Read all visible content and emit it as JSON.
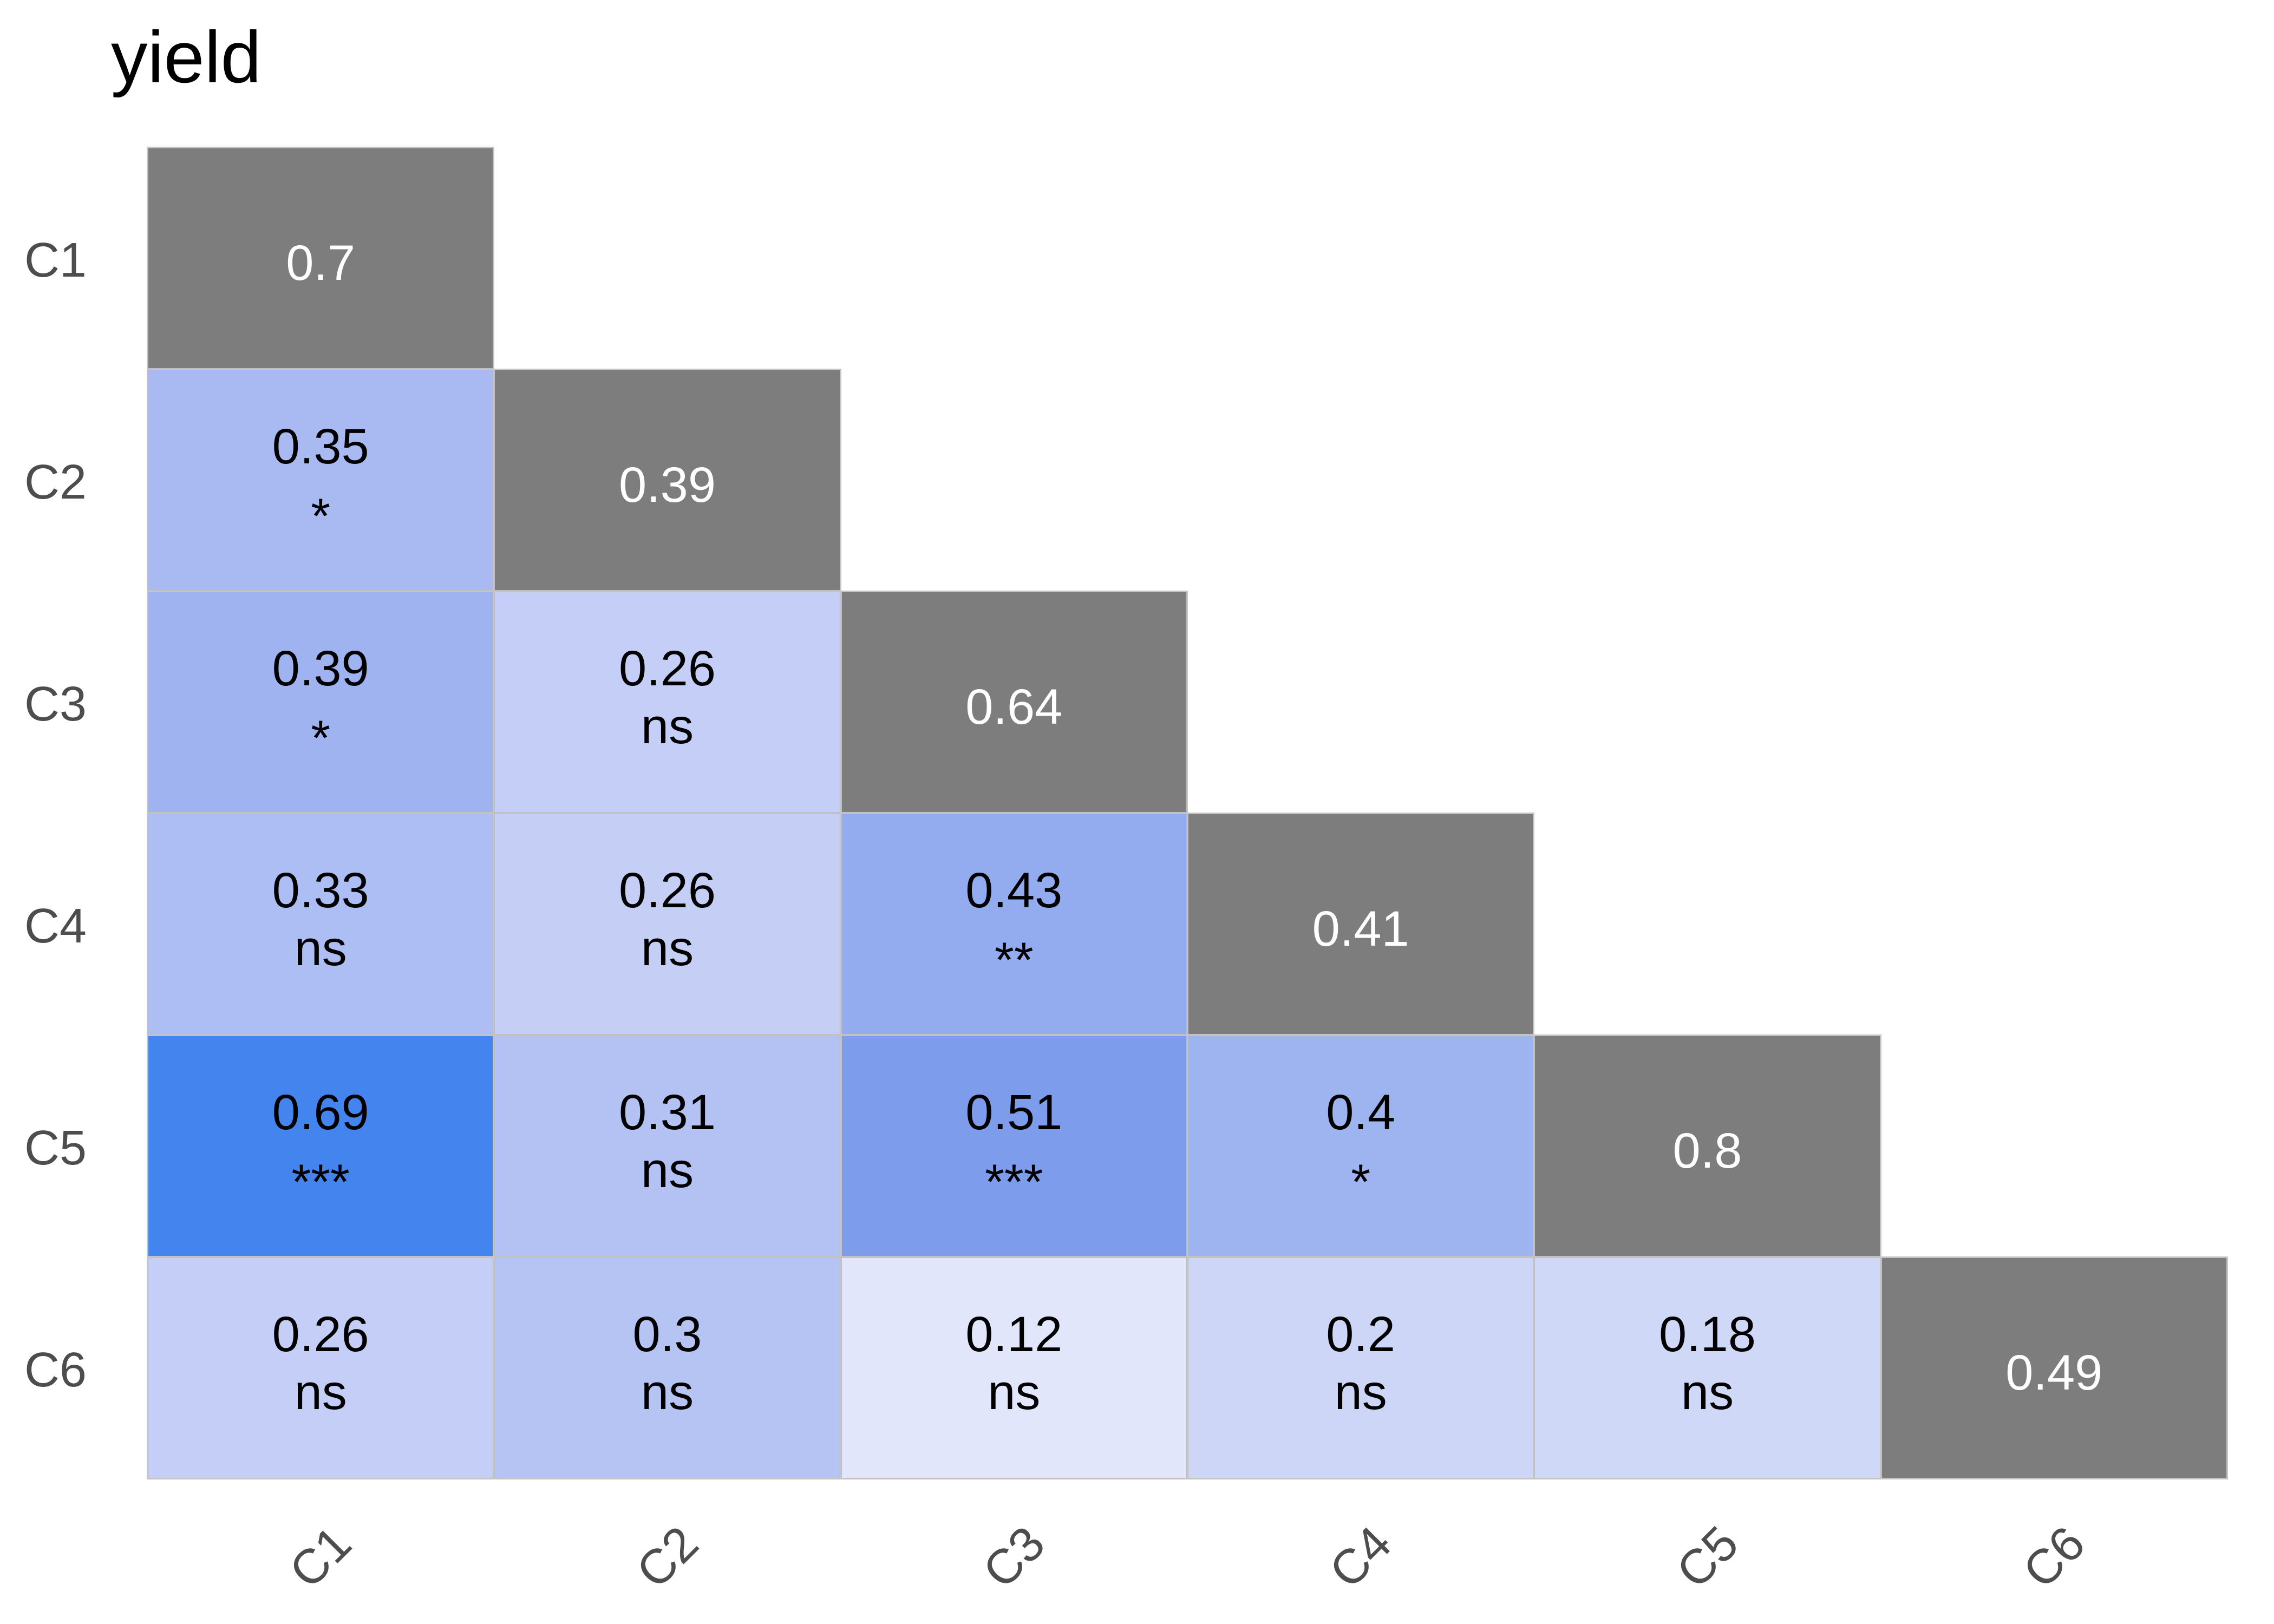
{
  "title": "yield",
  "style": {
    "background": "#ffffff",
    "title_color": "#000000",
    "axis_label_color": "#4d4d4d",
    "cell_border_color": "#c2c2c2",
    "diagonal_fill": "#7d7d7d",
    "diagonal_text_color": "#ffffff",
    "cell_text_color": "#000000"
  },
  "chart_data": {
    "type": "heatmap",
    "title": "yield",
    "legend": "none",
    "grid": "off",
    "rows": [
      "C1",
      "C2",
      "C3",
      "C4",
      "C5",
      "C6"
    ],
    "cols": [
      "C1",
      "C2",
      "C3",
      "C4",
      "C5",
      "C6"
    ],
    "note_significance_codes_shown": [
      "*",
      "**",
      "***",
      "ns"
    ],
    "cells": [
      {
        "row": "C1",
        "col": "C1",
        "value": 0.7,
        "label": "0.7",
        "sig": "",
        "diagonal": true,
        "color": "#7d7d7d"
      },
      {
        "row": "C2",
        "col": "C1",
        "value": 0.35,
        "label": "0.35",
        "sig": "*",
        "diagonal": false,
        "color": "#a9baf2"
      },
      {
        "row": "C2",
        "col": "C2",
        "value": 0.39,
        "label": "0.39",
        "sig": "",
        "diagonal": true,
        "color": "#7d7d7d"
      },
      {
        "row": "C3",
        "col": "C1",
        "value": 0.39,
        "label": "0.39",
        "sig": "*",
        "diagonal": false,
        "color": "#9eb3f0"
      },
      {
        "row": "C3",
        "col": "C2",
        "value": 0.26,
        "label": "0.26",
        "sig": "ns",
        "diagonal": false,
        "color": "#c4cef6"
      },
      {
        "row": "C3",
        "col": "C3",
        "value": 0.64,
        "label": "0.64",
        "sig": "",
        "diagonal": true,
        "color": "#7d7d7d"
      },
      {
        "row": "C4",
        "col": "C1",
        "value": 0.33,
        "label": "0.33",
        "sig": "ns",
        "diagonal": false,
        "color": "#acbef3"
      },
      {
        "row": "C4",
        "col": "C2",
        "value": 0.26,
        "label": "0.26",
        "sig": "ns",
        "diagonal": false,
        "color": "#c5cff6"
      },
      {
        "row": "C4",
        "col": "C3",
        "value": 0.43,
        "label": "0.43",
        "sig": "**",
        "diagonal": false,
        "color": "#93abef"
      },
      {
        "row": "C4",
        "col": "C4",
        "value": 0.41,
        "label": "0.41",
        "sig": "",
        "diagonal": true,
        "color": "#7d7d7d"
      },
      {
        "row": "C5",
        "col": "C1",
        "value": 0.69,
        "label": "0.69",
        "sig": "***",
        "diagonal": false,
        "color": "#4484ee"
      },
      {
        "row": "C5",
        "col": "C2",
        "value": 0.31,
        "label": "0.31",
        "sig": "ns",
        "diagonal": false,
        "color": "#b3c1f3"
      },
      {
        "row": "C5",
        "col": "C3",
        "value": 0.51,
        "label": "0.51",
        "sig": "***",
        "diagonal": false,
        "color": "#7e9cec"
      },
      {
        "row": "C5",
        "col": "C4",
        "value": 0.4,
        "label": "0.4",
        "sig": "*",
        "diagonal": false,
        "color": "#9db4f1"
      },
      {
        "row": "C5",
        "col": "C5",
        "value": 0.8,
        "label": "0.8",
        "sig": "",
        "diagonal": true,
        "color": "#7d7d7d"
      },
      {
        "row": "C6",
        "col": "C1",
        "value": 0.26,
        "label": "0.26",
        "sig": "ns",
        "diagonal": false,
        "color": "#c4cef6"
      },
      {
        "row": "C6",
        "col": "C2",
        "value": 0.3,
        "label": "0.3",
        "sig": "ns",
        "diagonal": false,
        "color": "#b6c4f4"
      },
      {
        "row": "C6",
        "col": "C3",
        "value": 0.12,
        "label": "0.12",
        "sig": "ns",
        "diagonal": false,
        "color": "#e2e6fb"
      },
      {
        "row": "C6",
        "col": "C4",
        "value": 0.2,
        "label": "0.2",
        "sig": "ns",
        "diagonal": false,
        "color": "#ced6f8"
      },
      {
        "row": "C6",
        "col": "C5",
        "value": 0.18,
        "label": "0.18",
        "sig": "ns",
        "diagonal": false,
        "color": "#d0d8f8"
      },
      {
        "row": "C6",
        "col": "C6",
        "value": 0.49,
        "label": "0.49",
        "sig": "",
        "diagonal": true,
        "color": "#7d7d7d"
      }
    ]
  },
  "x_axis": {
    "labels": [
      "C1",
      "C2",
      "C3",
      "C4",
      "C5",
      "C6"
    ],
    "rotation_deg": -45
  },
  "y_axis": {
    "labels": [
      "C1",
      "C2",
      "C3",
      "C4",
      "C5",
      "C6"
    ]
  }
}
